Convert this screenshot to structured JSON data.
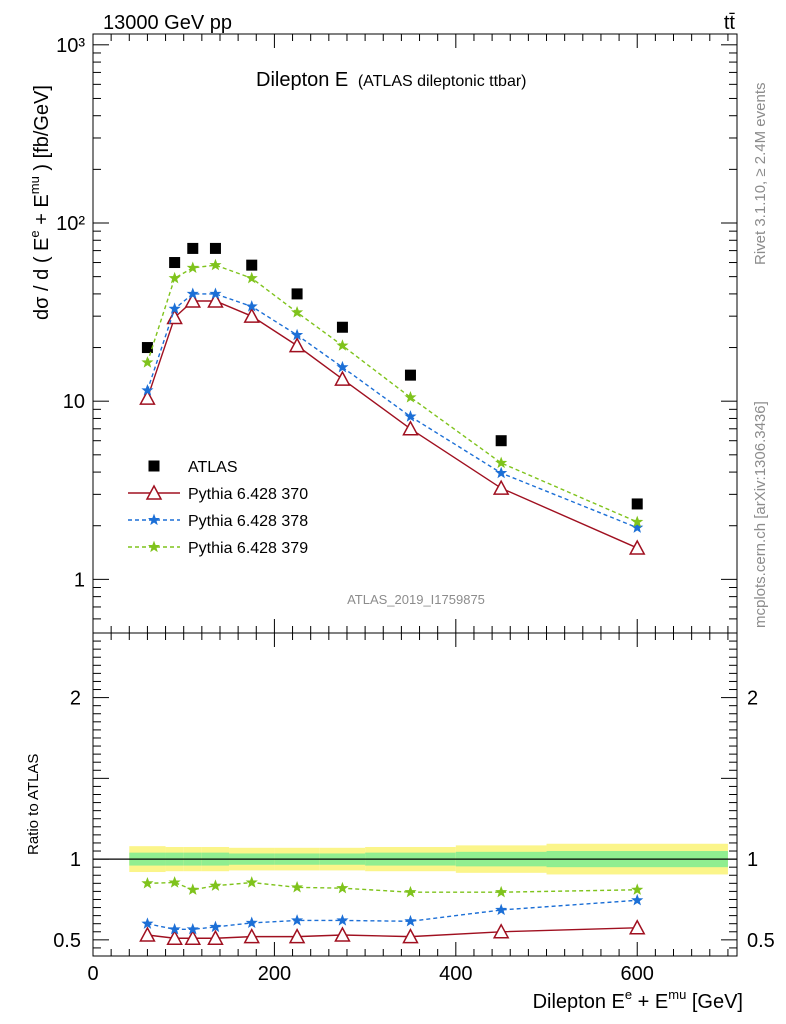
{
  "header": {
    "energy": "13000 GeV pp",
    "process": "tt̄"
  },
  "side_texts": {
    "rivet": "Rivet 3.1.10, ≥ 2.4M events",
    "site": "mcplots.cern.ch [arXiv:1306.3436]"
  },
  "chart_data": [
    {
      "type": "line",
      "panel": "main",
      "title_main": "Dilepton E",
      "title_sub": "(ATLAS dileptonic ttbar)",
      "ylabel": "dσ / d ( E^e + E^mu ) [fb/GeV]",
      "analysis_id": "ATLAS_2019_I1759875",
      "y_scale": "log",
      "xlim": [
        0,
        710
      ],
      "ylim": [
        0.5,
        1150
      ],
      "ytick_labels": [
        "1",
        "10",
        "10²",
        "10³"
      ],
      "legend_placement": "lower-left",
      "x": [
        60,
        90,
        110,
        135,
        175,
        225,
        275,
        350,
        450,
        600
      ],
      "series": [
        {
          "name": "ATLAS",
          "marker": "square",
          "color": "#000000",
          "values": [
            20,
            60,
            72,
            72,
            58,
            40,
            26,
            14,
            6.0,
            2.65
          ]
        },
        {
          "name": "Pythia 6.428 370",
          "marker": "open-triangle",
          "color": "#a01020",
          "values": [
            10.4,
            29.5,
            36.5,
            36.5,
            30,
            20.5,
            13.3,
            7.0,
            3.25,
            1.5
          ]
        },
        {
          "name": "Pythia 6.428 378",
          "marker": "star",
          "color": "#1c6fd6",
          "values": [
            11.5,
            33,
            40,
            40,
            34,
            23.5,
            15.5,
            8.2,
            3.95,
            1.95
          ]
        },
        {
          "name": "Pythia 6.428 379",
          "marker": "star",
          "color": "#7fc31c",
          "values": [
            16.5,
            49,
            56,
            58,
            49,
            31.5,
            20.5,
            10.5,
            4.5,
            2.1
          ]
        }
      ]
    },
    {
      "type": "line",
      "panel": "ratio",
      "ylabel": "Ratio to ATLAS",
      "xlabel": "Dilepton E^e + E^mu [GeV]",
      "xlim": [
        0,
        710
      ],
      "ylim": [
        0.4,
        2.4
      ],
      "xtick_labels": [
        "0",
        "200",
        "400",
        "600"
      ],
      "ytick_labels": [
        "0.5",
        "1",
        "2"
      ],
      "x": [
        60,
        90,
        110,
        135,
        175,
        225,
        275,
        350,
        450,
        600
      ],
      "bins": [
        [
          40,
          80
        ],
        [
          80,
          100
        ],
        [
          100,
          120
        ],
        [
          120,
          150
        ],
        [
          150,
          200
        ],
        [
          200,
          250
        ],
        [
          250,
          300
        ],
        [
          300,
          400
        ],
        [
          400,
          500
        ],
        [
          500,
          700
        ]
      ],
      "band_yellow_halfwidth": [
        0.08,
        0.075,
        0.075,
        0.075,
        0.07,
        0.07,
        0.07,
        0.075,
        0.085,
        0.095
      ],
      "band_green_halfwidth": [
        0.04,
        0.04,
        0.04,
        0.04,
        0.035,
        0.035,
        0.035,
        0.04,
        0.045,
        0.05
      ],
      "series": [
        {
          "name": "Pythia 6.428 370",
          "marker": "open-triangle",
          "color": "#a01020",
          "values": [
            0.53,
            0.51,
            0.51,
            0.51,
            0.52,
            0.52,
            0.53,
            0.52,
            0.55,
            0.575
          ]
        },
        {
          "name": "Pythia 6.428 378",
          "marker": "star",
          "color": "#1c6fd6",
          "values": [
            0.6,
            0.565,
            0.565,
            0.58,
            0.605,
            0.62,
            0.62,
            0.615,
            0.685,
            0.745
          ]
        },
        {
          "name": "Pythia 6.428 379",
          "marker": "star",
          "color": "#7fc31c",
          "values": [
            0.85,
            0.855,
            0.81,
            0.835,
            0.855,
            0.825,
            0.82,
            0.795,
            0.795,
            0.81
          ]
        }
      ]
    }
  ]
}
